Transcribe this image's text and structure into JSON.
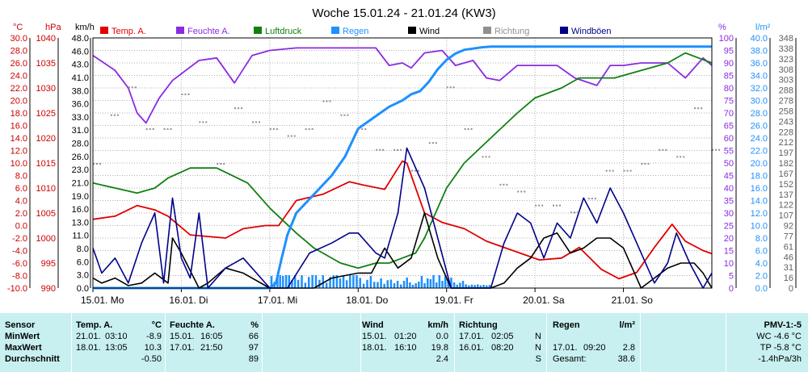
{
  "chart_data": {
    "type": "line",
    "title": "Woche 15.01.24 - 21.01.24 (KW3)",
    "x_days": [
      "15.01. Mo",
      "16.01. Di",
      "17.01. Mi",
      "18.01. Do",
      "19.01. Fr",
      "20.01. Sa",
      "21.01. So"
    ],
    "axes": {
      "temp_c": {
        "label": "°C",
        "ticks": [
          "30.0",
          "28.0",
          "26.0",
          "24.0",
          "22.0",
          "20.0",
          "18.0",
          "16.0",
          "14.0",
          "12.0",
          "10.0",
          "8.0",
          "6.0",
          "4.0",
          "2.0",
          "0.0",
          "-2.0",
          "-4.0",
          "-6.0",
          "-8.0",
          "-10.0"
        ],
        "range": [
          -10,
          30
        ]
      },
      "pressure_hpa": {
        "label": "hPa",
        "ticks": [
          "1040",
          "1035",
          "1030",
          "1025",
          "1020",
          "1015",
          "1010",
          "1005",
          "1000",
          "995",
          "990"
        ],
        "range": [
          990,
          1040
        ]
      },
      "wind_kmh": {
        "label": "km/h",
        "ticks": [
          "48.0",
          "46.0",
          "43.0",
          "41.0",
          "38.0",
          "36.0",
          "33.0",
          "31.0",
          "28.0",
          "26.0",
          "23.0",
          "21.0",
          "19.0",
          "16.0",
          "13.0",
          "11.0",
          "8.0",
          "6.0",
          "3.0",
          "0.0"
        ],
        "range": [
          0,
          50
        ]
      },
      "humidity_pct": {
        "label": "%",
        "ticks": [
          "100",
          "95",
          "90",
          "85",
          "80",
          "75",
          "70",
          "65",
          "60",
          "55",
          "50",
          "45",
          "40",
          "35",
          "30",
          "25",
          "20",
          "15",
          "10",
          "5",
          "0"
        ],
        "range": [
          0,
          100
        ]
      },
      "rain_lm2": {
        "label": "l/m²",
        "ticks": [
          "40.0",
          "38.0",
          "36.0",
          "34.0",
          "32.0",
          "30.0",
          "28.0",
          "26.0",
          "24.0",
          "22.0",
          "20.0",
          "18.0",
          "16.0",
          "14.0",
          "12.0",
          "10.0",
          "8.0",
          "6.0",
          "4.0",
          "2.0",
          "0.0"
        ],
        "range": [
          0,
          40
        ]
      },
      "direction_deg": {
        "label": "",
        "ticks": [
          "348",
          "338",
          "323",
          "308",
          "303",
          "288",
          "278",
          "258",
          "243",
          "228",
          "212",
          "197",
          "182",
          "167",
          "152",
          "137",
          "122",
          "107",
          "92",
          "77",
          "61",
          "46",
          "31",
          "16",
          "0"
        ],
        "range": [
          0,
          360
        ]
      }
    },
    "legend": [
      {
        "name": "Temp. A.",
        "color": "#e00000"
      },
      {
        "name": "Feuchte A.",
        "color": "#8a2be2"
      },
      {
        "name": "Luftdruck",
        "color": "#108010"
      },
      {
        "name": "Regen",
        "color": "#1e90ff"
      },
      {
        "name": "Wind",
        "color": "#000000"
      },
      {
        "name": "Richtung",
        "color": "#909090"
      },
      {
        "name": "Windböen",
        "color": "#00008b"
      }
    ],
    "series": [
      {
        "name": "Temp. A.",
        "axis": "temp_c",
        "x": [
          0,
          0.25,
          0.5,
          0.7,
          0.85,
          1.1,
          1.5,
          1.7,
          1.95,
          2.1,
          2.3,
          2.45,
          2.6,
          2.9,
          3.05,
          3.3,
          3.5,
          3.55,
          3.75,
          3.95,
          4.2,
          4.45,
          4.65,
          4.85,
          5.05,
          5.3,
          5.5,
          5.75,
          5.95,
          6.15,
          6.35,
          6.55,
          6.7,
          6.9,
          7
        ],
        "values": [
          1.0,
          1.5,
          3.2,
          2.5,
          1.5,
          -1.5,
          -2.0,
          -0.5,
          0,
          0,
          4.0,
          4.5,
          5.0,
          7.0,
          6.5,
          5.8,
          10.3,
          10.0,
          2.0,
          0.5,
          -0.5,
          -2.5,
          -3.5,
          -4.5,
          -5.5,
          -5.2,
          -3.5,
          -7.0,
          -8.5,
          -7.5,
          -3.5,
          0.2,
          -2.5,
          -4.0,
          -4.5
        ]
      },
      {
        "name": "Feuchte A.",
        "axis": "humidity_pct",
        "x": [
          0,
          0.25,
          0.4,
          0.5,
          0.6,
          0.75,
          0.9,
          1.2,
          1.4,
          1.6,
          1.8,
          2,
          2.3,
          2.6,
          2.9,
          3.2,
          3.35,
          3.5,
          3.6,
          3.75,
          3.95,
          4.1,
          4.3,
          4.45,
          4.6,
          4.8,
          5,
          5.25,
          5.45,
          5.7,
          5.85,
          6,
          6.2,
          6.5,
          6.7,
          6.9,
          7
        ],
        "values": [
          93,
          87,
          80,
          70,
          66,
          76,
          83,
          91,
          92,
          82,
          93,
          95,
          96,
          96,
          96,
          96,
          89,
          90,
          88,
          94,
          95,
          89,
          91,
          84,
          83,
          89,
          89,
          89,
          84,
          81,
          89,
          89,
          90,
          90,
          84,
          92,
          89
        ]
      },
      {
        "name": "Luftdruck",
        "axis": "pressure_hpa",
        "x": [
          0,
          0.25,
          0.5,
          0.7,
          0.85,
          1.1,
          1.4,
          1.75,
          2,
          2.3,
          2.5,
          2.8,
          3,
          3.2,
          3.35,
          3.5,
          3.65,
          3.75,
          3.85,
          4,
          4.2,
          4.5,
          4.8,
          5,
          5.3,
          5.5,
          5.7,
          5.9,
          6.1,
          6.3,
          6.5,
          6.7,
          6.85,
          7
        ],
        "values": [
          1011,
          1010,
          1009,
          1010,
          1012,
          1014,
          1014,
          1011,
          1006,
          1001,
          998,
          995,
          994,
          995,
          995,
          996,
          997,
          1000,
          1004,
          1010,
          1015,
          1020,
          1025,
          1028,
          1030,
          1032,
          1032,
          1032,
          1033,
          1034,
          1035,
          1037,
          1036,
          1035
        ]
      },
      {
        "name": "Regen",
        "axis": "rain_lm2",
        "x": [
          0,
          1.95,
          2,
          2.07,
          2.13,
          2.2,
          2.3,
          2.5,
          2.7,
          2.85,
          3,
          3.2,
          3.35,
          3.5,
          3.6,
          3.7,
          3.8,
          3.9,
          4,
          4.1,
          4.2,
          4.3,
          4.4,
          4.5,
          5,
          7
        ],
        "values": [
          0,
          0,
          0,
          0.8,
          4.5,
          8.5,
          12.0,
          15.0,
          18.0,
          21.0,
          25.5,
          27.5,
          29.0,
          30.0,
          31.0,
          31.5,
          33.0,
          35.0,
          36.5,
          37.5,
          38.1,
          38.3,
          38.5,
          38.6,
          38.6,
          38.6
        ]
      },
      {
        "name": "Wind",
        "axis": "wind_kmh",
        "x": [
          0,
          0.1,
          0.25,
          0.4,
          0.55,
          0.7,
          0.85,
          0.9,
          1,
          1.2,
          1.3,
          1.5,
          1.7,
          2,
          2.2,
          2.5,
          2.7,
          3,
          3.15,
          3.3,
          3.45,
          3.6,
          3.75,
          3.9,
          4.05,
          4.5,
          4.65,
          4.8,
          4.95,
          5.1,
          5.25,
          5.4,
          5.55,
          5.7,
          5.85,
          6,
          6.2,
          6.35,
          6.5,
          6.65,
          6.8,
          6.9,
          7
        ],
        "values": [
          2,
          1,
          2,
          0.5,
          1,
          3,
          1,
          10,
          7,
          0,
          1,
          4,
          3,
          0,
          0,
          0,
          2,
          3,
          3,
          8,
          4,
          6,
          15,
          6,
          0,
          0,
          1,
          4,
          6,
          10,
          11,
          7,
          8,
          10,
          10,
          8,
          0,
          2,
          4,
          5,
          5,
          3,
          0
        ]
      },
      {
        "name": "Windböen",
        "axis": "wind_kmh",
        "x": [
          0,
          0.1,
          0.25,
          0.4,
          0.55,
          0.7,
          0.8,
          0.9,
          1,
          1.1,
          1.2,
          1.3,
          1.5,
          1.7,
          2,
          2.2,
          2.45,
          2.7,
          2.9,
          3,
          3.2,
          3.3,
          3.45,
          3.55,
          3.75,
          3.9,
          4.05,
          4.5,
          4.65,
          4.8,
          4.95,
          5.1,
          5.25,
          5.4,
          5.55,
          5.7,
          5.85,
          6,
          6.2,
          6.35,
          6.5,
          6.6,
          6.75,
          6.9,
          7
        ],
        "values": [
          8,
          3,
          6,
          1,
          9,
          15,
          1,
          18,
          6,
          2,
          15,
          0,
          4,
          6,
          0,
          0,
          7,
          9,
          11,
          11,
          7,
          6,
          15,
          28,
          20,
          10,
          0,
          0,
          9,
          15,
          13,
          6,
          13,
          10,
          18,
          13,
          20,
          15,
          7,
          1,
          5,
          11,
          5,
          0,
          3
        ]
      },
      {
        "name": "Richtung",
        "axis": "direction_deg",
        "x": [
          0,
          0.2,
          0.4,
          0.6,
          0.8,
          1,
          1.2,
          1.4,
          1.6,
          1.8,
          2,
          2.2,
          2.4,
          2.6,
          2.8,
          3,
          3.2,
          3.4,
          3.6,
          3.8,
          4,
          4.2,
          4.4,
          4.6,
          4.8,
          5,
          5.2,
          5.4,
          5.6,
          5.8,
          6,
          6.2,
          6.4,
          6.6,
          6.8,
          7
        ],
        "values": [
          180,
          250,
          290,
          230,
          230,
          280,
          240,
          180,
          260,
          240,
          230,
          220,
          230,
          270,
          250,
          230,
          200,
          200,
          170,
          210,
          290,
          230,
          190,
          150,
          140,
          120,
          120,
          110,
          130,
          170,
          170,
          180,
          200,
          190,
          260,
          200
        ]
      }
    ]
  },
  "table": {
    "header": {
      "sensor": "Sensor",
      "temp": "Temp. A.",
      "temp_unit": "°C",
      "hum": "Feuchte A.",
      "hum_unit": "%",
      "wind": "Wind",
      "wind_unit": "km/h",
      "dir": "Richtung",
      "rain": "Regen",
      "rain_unit": "l/m²",
      "pmv": "PMV-1:-5"
    },
    "rows": [
      {
        "label": "MinWert",
        "temp_date": "21.01.",
        "temp_time": "03:10",
        "temp_val": "-8.9",
        "hum_date": "15.01.",
        "hum_time": "16:05",
        "hum_val": "66",
        "wind_date": "15.01.",
        "wind_time": "01:20",
        "wind_val": "0.0",
        "dir_date": "17.01.",
        "dir_time": "02:05",
        "dir_val": "N",
        "rain_date": "",
        "rain_time": "",
        "rain_val": "",
        "extra": "WC -4.6 °C"
      },
      {
        "label": "MaxWert",
        "temp_date": "18.01.",
        "temp_time": "13:05",
        "temp_val": "10.3",
        "hum_date": "17.01.",
        "hum_time": "21:50",
        "hum_val": "97",
        "wind_date": "18.01.",
        "wind_time": "16:10",
        "wind_val": "19.8",
        "dir_date": "16.01.",
        "dir_time": "08:20",
        "dir_val": "N",
        "rain_date": "17.01.",
        "rain_time": "09:20",
        "rain_val": "2.8",
        "extra": "TP -5.8 °C"
      },
      {
        "label": "Durchschnitt",
        "temp_date": "",
        "temp_time": "",
        "temp_val": "-0.50",
        "hum_date": "",
        "hum_time": "",
        "hum_val": "89",
        "wind_date": "",
        "wind_time": "",
        "wind_val": "2.4",
        "dir_date": "",
        "dir_time": "",
        "dir_val": "S",
        "rain_date": "Gesamt:",
        "rain_time": "",
        "rain_val": "38.6",
        "extra": "-1.4hPa/3h"
      }
    ]
  }
}
